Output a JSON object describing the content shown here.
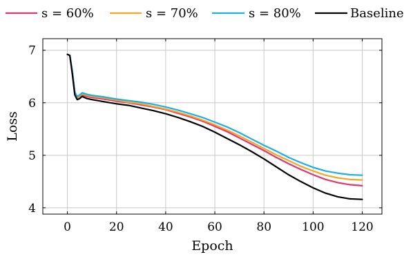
{
  "chart_data": {
    "type": "line",
    "xlabel": "Epoch",
    "ylabel": "Loss",
    "xlim": [
      -10,
      128
    ],
    "ylim": [
      3.88,
      7.22
    ],
    "xticks": [
      0,
      20,
      40,
      60,
      80,
      100,
      120
    ],
    "yticks": [
      4,
      5,
      6,
      7
    ],
    "grid": true,
    "legend_position": "top",
    "x": [
      0,
      1,
      2,
      3,
      4,
      5,
      6,
      8,
      10,
      15,
      20,
      25,
      30,
      35,
      40,
      45,
      50,
      55,
      60,
      65,
      70,
      75,
      80,
      85,
      90,
      95,
      100,
      105,
      110,
      115,
      120
    ],
    "series": [
      {
        "name": "s = 60%",
        "color": "#e0356e",
        "values": [
          6.92,
          6.9,
          6.6,
          6.2,
          6.1,
          6.12,
          6.15,
          6.12,
          6.1,
          6.07,
          6.03,
          6.0,
          5.96,
          5.92,
          5.87,
          5.8,
          5.73,
          5.65,
          5.55,
          5.45,
          5.33,
          5.21,
          5.09,
          4.96,
          4.84,
          4.73,
          4.63,
          4.54,
          4.48,
          4.44,
          4.42
        ]
      },
      {
        "name": "s = 70%",
        "color": "#f5a623",
        "values": [
          6.92,
          6.9,
          6.6,
          6.2,
          6.1,
          6.13,
          6.17,
          6.14,
          6.12,
          6.09,
          6.05,
          6.01,
          5.98,
          5.93,
          5.88,
          5.82,
          5.75,
          5.67,
          5.58,
          5.48,
          5.37,
          5.25,
          5.13,
          5.01,
          4.9,
          4.79,
          4.7,
          4.62,
          4.57,
          4.54,
          4.53
        ]
      },
      {
        "name": "s = 80%",
        "color": "#1aaee6",
        "values": [
          6.92,
          6.9,
          6.6,
          6.2,
          6.12,
          6.15,
          6.19,
          6.16,
          6.14,
          6.11,
          6.07,
          6.04,
          6.01,
          5.97,
          5.92,
          5.86,
          5.79,
          5.72,
          5.63,
          5.54,
          5.43,
          5.31,
          5.19,
          5.08,
          4.96,
          4.86,
          4.77,
          4.7,
          4.66,
          4.63,
          4.62
        ]
      },
      {
        "name": "Baseline",
        "color": "#000000",
        "values": [
          6.92,
          6.9,
          6.55,
          6.15,
          6.06,
          6.08,
          6.12,
          6.08,
          6.06,
          6.02,
          5.98,
          5.95,
          5.9,
          5.85,
          5.79,
          5.72,
          5.64,
          5.55,
          5.44,
          5.32,
          5.2,
          5.07,
          4.93,
          4.78,
          4.63,
          4.5,
          4.38,
          4.28,
          4.21,
          4.17,
          4.16
        ]
      }
    ]
  }
}
